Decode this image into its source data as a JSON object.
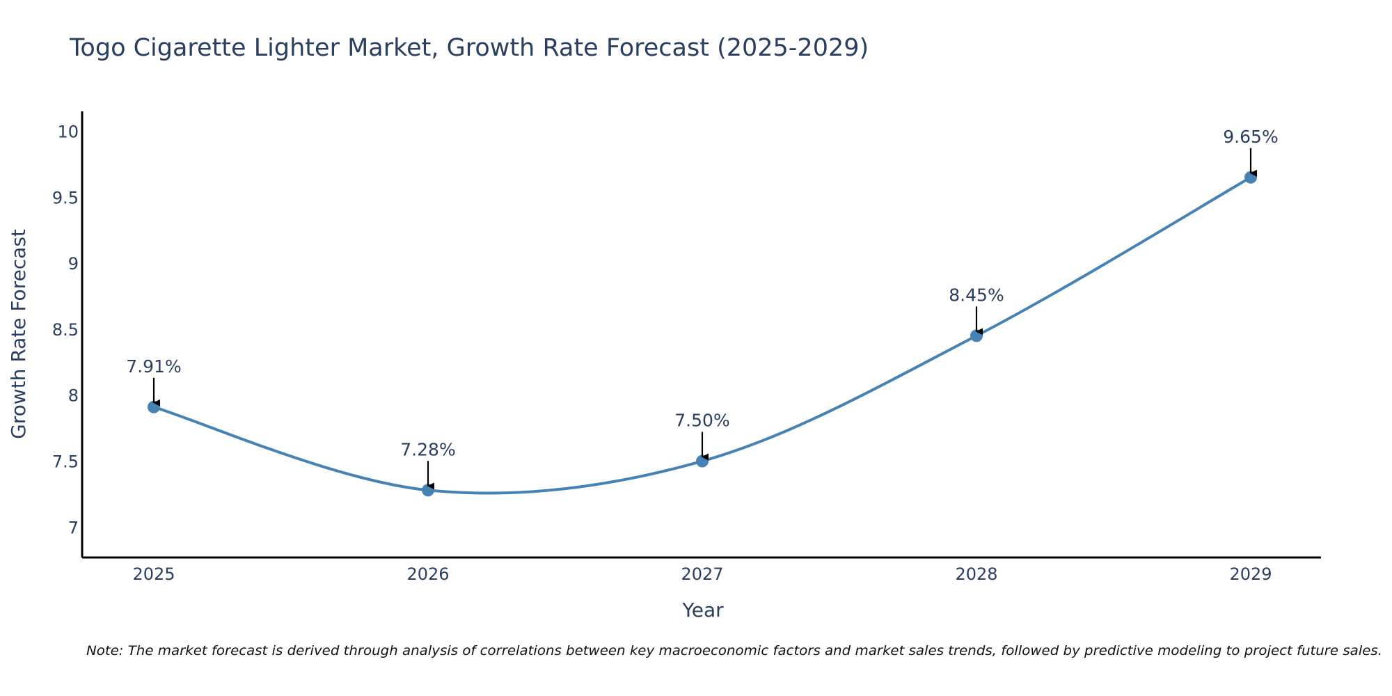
{
  "colors": {
    "line": "#4682b4",
    "marker": "#4682b4",
    "axis": "#000000",
    "text": "#2a3f5f",
    "arrow": "#000000"
  },
  "note": "Note: The market forecast is derived through analysis of correlations between key macroeconomic factors and market sales trends, followed by predictive modeling to project future sales.",
  "chart_data": {
    "type": "line",
    "title": "Togo Cigarette Lighter Market, Growth Rate Forecast (2025-2029)",
    "xlabel": "Year",
    "ylabel": "Growth Rate Forecast",
    "categories": [
      "2025",
      "2026",
      "2027",
      "2028",
      "2029"
    ],
    "values": [
      7.91,
      7.28,
      7.5,
      8.45,
      9.65
    ],
    "data_labels": [
      "7.91%",
      "7.28%",
      "7.50%",
      "8.45%",
      "9.65%"
    ],
    "yticks": [
      7,
      7.5,
      8,
      8.5,
      9,
      9.5,
      10
    ],
    "ytick_labels": [
      "7",
      "7.5",
      "8",
      "8.5",
      "9",
      "9.5",
      "10"
    ],
    "ylim": [
      6.77,
      10.15
    ],
    "grid": false,
    "legend": "none",
    "line_shape": "spline"
  }
}
